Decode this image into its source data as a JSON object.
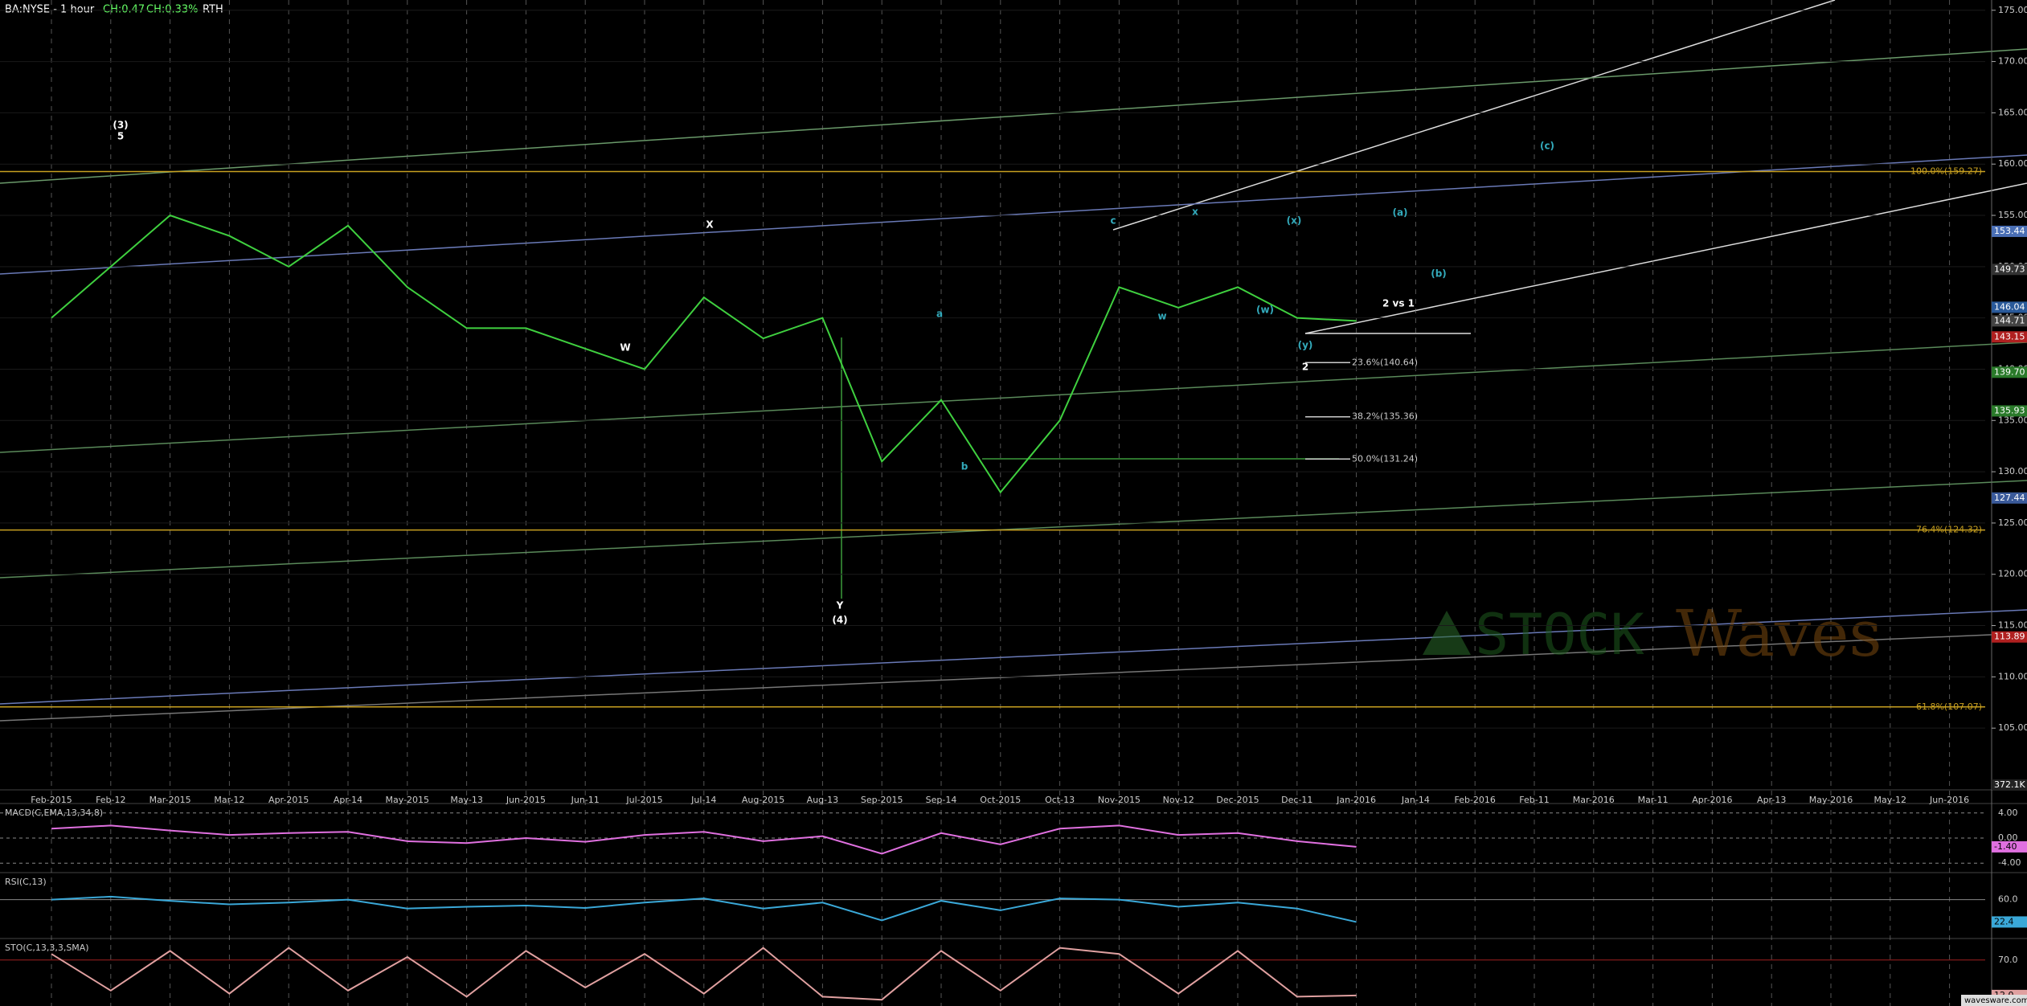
{
  "header": {
    "symbol": "BA:NYSE - 1 hour",
    "change": "CH:0.47",
    "change_pct": "CH:0.33%",
    "session": "RTH",
    "watermark": "wavesware.com",
    "logo": "STOCK",
    "logo_tail": "Waves"
  },
  "chart_data": [
    {
      "type": "line",
      "color": "#3fd03f",
      "categories": [
        "Feb-2015",
        "Feb-12",
        "Mar-2015",
        "Mar-12",
        "Apr-2015",
        "Apr-14",
        "May-2015",
        "May-13",
        "Jun-2015",
        "Jun-11",
        "Jul-2015",
        "Jul-14",
        "Aug-2015",
        "Aug-13",
        "Sep-2015",
        "Sep-14",
        "Oct-2015",
        "Oct-13",
        "Nov-2015",
        "Nov-12",
        "Dec-2015",
        "Dec-11",
        "Jan-2016",
        "Jan-14",
        "Feb-2016",
        "Feb-11",
        "Mar-2016",
        "Mar-11",
        "Apr-2016",
        "Apr-13",
        "May-2016",
        "May-12",
        "Jun-2016"
      ],
      "values": [
        145,
        150,
        155,
        153,
        150,
        154,
        148,
        144,
        144,
        142,
        140,
        147,
        143,
        145,
        131,
        137,
        128,
        135,
        148,
        146,
        148,
        145,
        144.71,
        null,
        null,
        null,
        null,
        null,
        null,
        null,
        null,
        null,
        null
      ],
      "ylim": [
        100,
        176
      ],
      "grid": true,
      "yticks": [
        {
          "value": 105,
          "label": "105.00"
        },
        {
          "value": 110,
          "label": "110.00"
        },
        {
          "value": 115,
          "label": "115.00"
        },
        {
          "value": 120,
          "label": "120.00"
        },
        {
          "value": 125,
          "label": "125.00"
        },
        {
          "value": 130,
          "label": "130.00"
        },
        {
          "value": 135,
          "label": "135.00"
        },
        {
          "value": 140,
          "label": "140.00"
        },
        {
          "value": 145,
          "label": "145.00"
        },
        {
          "value": 150,
          "label": "150.00"
        },
        {
          "value": 155,
          "label": "155.00"
        },
        {
          "value": 160,
          "label": "160.00"
        },
        {
          "value": 165,
          "label": "165.00"
        },
        {
          "value": 170,
          "label": "170.00"
        },
        {
          "value": 175,
          "label": "175.00"
        }
      ],
      "price_tags": [
        {
          "value": 153.44,
          "label": "153.44",
          "color": "#4a6fb5"
        },
        {
          "value": 149.73,
          "label": "149.73",
          "color": "#333"
        },
        {
          "value": 146.04,
          "label": "146.04",
          "color": "#2a5a9a"
        },
        {
          "value": 144.71,
          "label": "144.71",
          "color": "#444"
        },
        {
          "value": 143.15,
          "label": "143.15",
          "color": "#b02020"
        },
        {
          "value": 139.7,
          "label": "139.70",
          "color": "#2a7a2a"
        },
        {
          "value": 135.93,
          "label": "135.93",
          "color": "#2a7a2a"
        },
        {
          "value": 127.44,
          "label": "127.44",
          "color": "#3a5a9a"
        },
        {
          "value": 113.89,
          "label": "113.89",
          "color": "#b02020"
        }
      ],
      "fib_levels": [
        {
          "value": 159.27,
          "label": "100.0%(159.27)",
          "color": "#c8a020"
        },
        {
          "value": 124.32,
          "label": "76.4%(124.32)",
          "color": "#c8a020"
        },
        {
          "value": 107.07,
          "label": "61.8%(107.07)",
          "color": "#c8a020"
        },
        {
          "value": 140.64,
          "label": "23.6%(140.64)",
          "color": "#ccc"
        },
        {
          "value": 135.36,
          "label": "38.2%(135.36)",
          "color": "#ccc"
        },
        {
          "value": 131.24,
          "label": "50.0%(131.24)",
          "color": "#ccc"
        }
      ],
      "wave_labels": [
        "(3)",
        "5",
        "X",
        "W",
        "Y",
        "(4)",
        "2 vs 1",
        "(a)",
        "(b)",
        "(c)",
        "(w)",
        "(x)",
        "(y)",
        "a",
        "b",
        "c",
        "w",
        "x",
        "2"
      ],
      "volume_tag": "372.1K"
    },
    {
      "type": "line",
      "title": "MACD(C,EMA,13,34,8)",
      "color": "#e070e0",
      "values": [
        1.5,
        2,
        1.2,
        0.5,
        0.8,
        1,
        -0.5,
        -0.8,
        0,
        -0.6,
        0.5,
        1,
        -0.5,
        0.3,
        -2.5,
        0.8,
        -1,
        1.5,
        2,
        0.5,
        0.8,
        -0.5,
        -1.4
      ],
      "ylim": [
        -5,
        5
      ],
      "yticks": [
        {
          "value": 4,
          "label": "4.00"
        },
        {
          "value": 0,
          "label": "0.00"
        },
        {
          "value": -4,
          "label": "-4.00"
        }
      ],
      "tag": {
        "value": -1.4,
        "label": "-1.40"
      }
    },
    {
      "type": "line",
      "title": "RSI(C,13)",
      "color": "#3aa8d8",
      "values": [
        60,
        65,
        58,
        52,
        55,
        60,
        45,
        48,
        50,
        46,
        55,
        62,
        45,
        55,
        25,
        58,
        42,
        62,
        60,
        48,
        55,
        45,
        22.4
      ],
      "ylim": [
        0,
        100
      ],
      "yticks": [
        {
          "value": 60,
          "label": "60.0"
        }
      ],
      "tag": {
        "value": 22.4,
        "label": "22.4"
      }
    },
    {
      "type": "line",
      "title": "STO(C,13,3,3,SMA)",
      "color": "#e0a0a0",
      "values": [
        80,
        20,
        85,
        15,
        90,
        20,
        75,
        10,
        85,
        25,
        80,
        15,
        90,
        10,
        5,
        85,
        20,
        90,
        80,
        15,
        85,
        10,
        12
      ],
      "ylim": [
        0,
        100
      ],
      "yticks": [
        {
          "value": 70,
          "label": "70.0"
        }
      ],
      "tag": {
        "value": 12,
        "label": "12.0"
      }
    }
  ]
}
